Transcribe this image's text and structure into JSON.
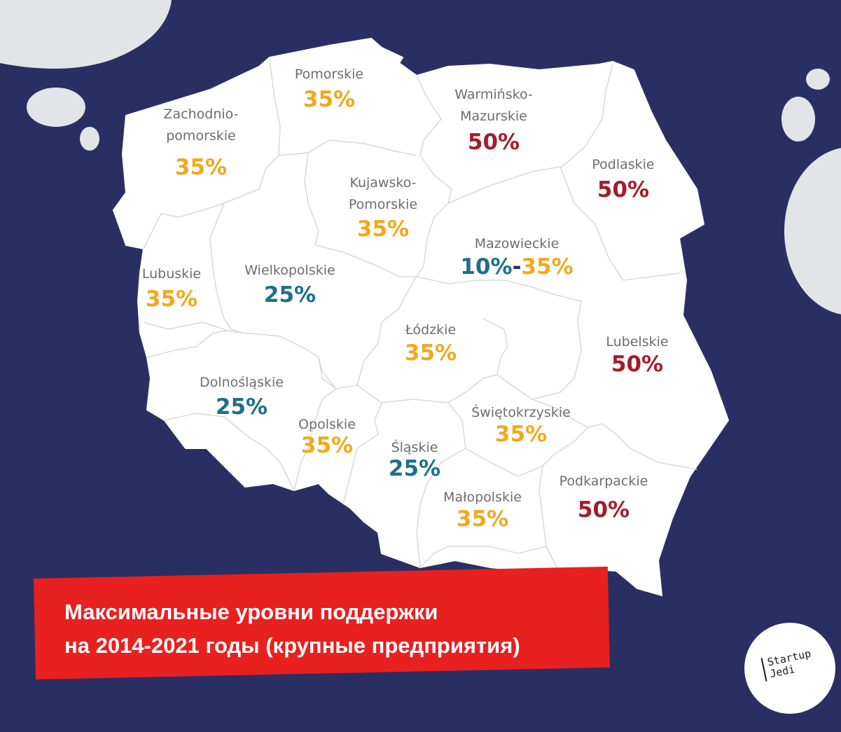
{
  "colors": {
    "background": "#2a2f63",
    "map_fill": "#ffffff",
    "border": "#d9d9de",
    "blob": "#e3e4e8",
    "banner": "#e8201f",
    "label": "#6d6d6d",
    "pct_orange": "#f2a81d",
    "pct_red": "#a31d2b",
    "pct_teal": "#1d6f8a"
  },
  "regions": [
    {
      "name_lines": [
        "Pomorskie"
      ],
      "value": "35%",
      "color": "orange"
    },
    {
      "name_lines": [
        "Warmińsko-",
        "Mazurskie"
      ],
      "value": "50%",
      "color": "red"
    },
    {
      "name_lines": [
        "Zachodnio-",
        "pomorskie"
      ],
      "value": "35%",
      "color": "orange"
    },
    {
      "name_lines": [
        "Podlaskie"
      ],
      "value": "50%",
      "color": "red"
    },
    {
      "name_lines": [
        "Kujawsko-",
        "Pomorskie"
      ],
      "value": "35%",
      "color": "orange"
    },
    {
      "name_lines": [
        "Mazowieckie"
      ],
      "value_parts": [
        {
          "text": "10%",
          "color": "teal"
        },
        {
          "text": "-",
          "color": "dash"
        },
        {
          "text": "35%",
          "color": "orange"
        }
      ]
    },
    {
      "name_lines": [
        "Lubuskie"
      ],
      "value": "35%",
      "color": "orange"
    },
    {
      "name_lines": [
        "Wielkopolskie"
      ],
      "value": "25%",
      "color": "teal"
    },
    {
      "name_lines": [
        "Łódzkie"
      ],
      "value": "35%",
      "color": "orange"
    },
    {
      "name_lines": [
        "Lubelskie"
      ],
      "value": "50%",
      "color": "red"
    },
    {
      "name_lines": [
        "Dolnośląskie"
      ],
      "value": "25%",
      "color": "teal"
    },
    {
      "name_lines": [
        "Świętokrzyskie"
      ],
      "value": "35%",
      "color": "orange"
    },
    {
      "name_lines": [
        "Opolskie"
      ],
      "value": "35%",
      "color": "orange"
    },
    {
      "name_lines": [
        "Śląskie"
      ],
      "value": "25%",
      "color": "teal"
    },
    {
      "name_lines": [
        "Podkarpackie"
      ],
      "value": "50%",
      "color": "red"
    },
    {
      "name_lines": [
        "Małopolskie"
      ],
      "value": "35%",
      "color": "orange"
    }
  ],
  "banner": {
    "line1": "Максимальные уровни поддержки",
    "line2": "на 2014-2021 годы (крупные предприятия)"
  },
  "logo": {
    "line1": "Startup",
    "line2": "Jedi"
  }
}
